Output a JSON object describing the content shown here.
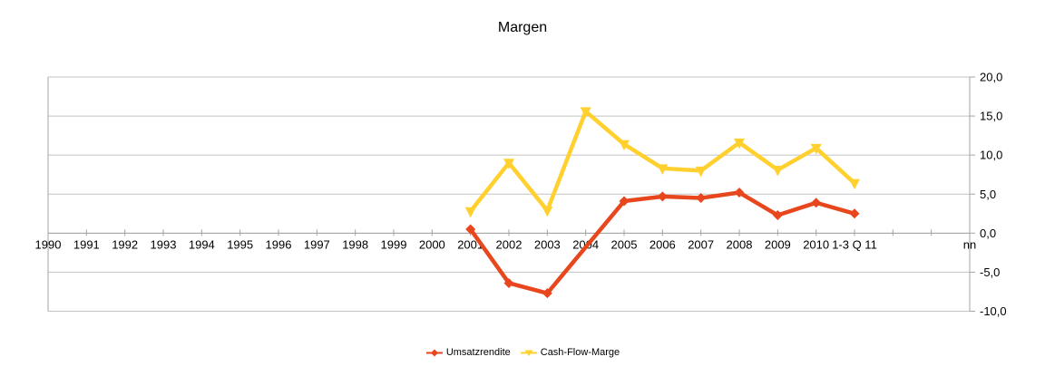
{
  "chart_data": {
    "type": "line",
    "title": "Margen",
    "categories": [
      "1990",
      "1991",
      "1992",
      "1993",
      "1994",
      "1995",
      "1996",
      "1997",
      "1998",
      "1999",
      "2000",
      "2001",
      "2002",
      "2003",
      "2004",
      "2005",
      "2006",
      "2007",
      "2008",
      "2009",
      "2010",
      "1-3 Q 11",
      "",
      "",
      "nn"
    ],
    "series": [
      {
        "name": "Umsatzrendite",
        "color": "#e8461c",
        "marker": "diamond",
        "values": [
          null,
          null,
          null,
          null,
          null,
          null,
          null,
          null,
          null,
          null,
          null,
          0.5,
          -6.4,
          -7.7,
          null,
          4.1,
          4.7,
          4.5,
          5.2,
          2.3,
          3.9,
          2.5,
          null,
          null,
          null
        ]
      },
      {
        "name": "Cash-Flow-Marge",
        "color": "#ffd02e",
        "marker": "triangle-down",
        "values": [
          null,
          null,
          null,
          null,
          null,
          null,
          null,
          null,
          null,
          null,
          null,
          2.8,
          9.0,
          2.9,
          15.6,
          11.4,
          8.3,
          8.0,
          11.6,
          8.1,
          10.9,
          6.4,
          null,
          null,
          null
        ]
      }
    ],
    "y_axis": {
      "min": -10,
      "max": 20,
      "step": 5,
      "side": "right",
      "tick_labels": [
        "20,0",
        "15,0",
        "10,0",
        "5,0",
        "0,0",
        "-5,0",
        "-10,0"
      ]
    },
    "grid": "horizontal-only",
    "legend_position": "bottom-center",
    "colors": {
      "grid": "#c3c3c3",
      "axis": "#a3a3a3",
      "text": "#000000",
      "background": "#ffffff"
    }
  }
}
